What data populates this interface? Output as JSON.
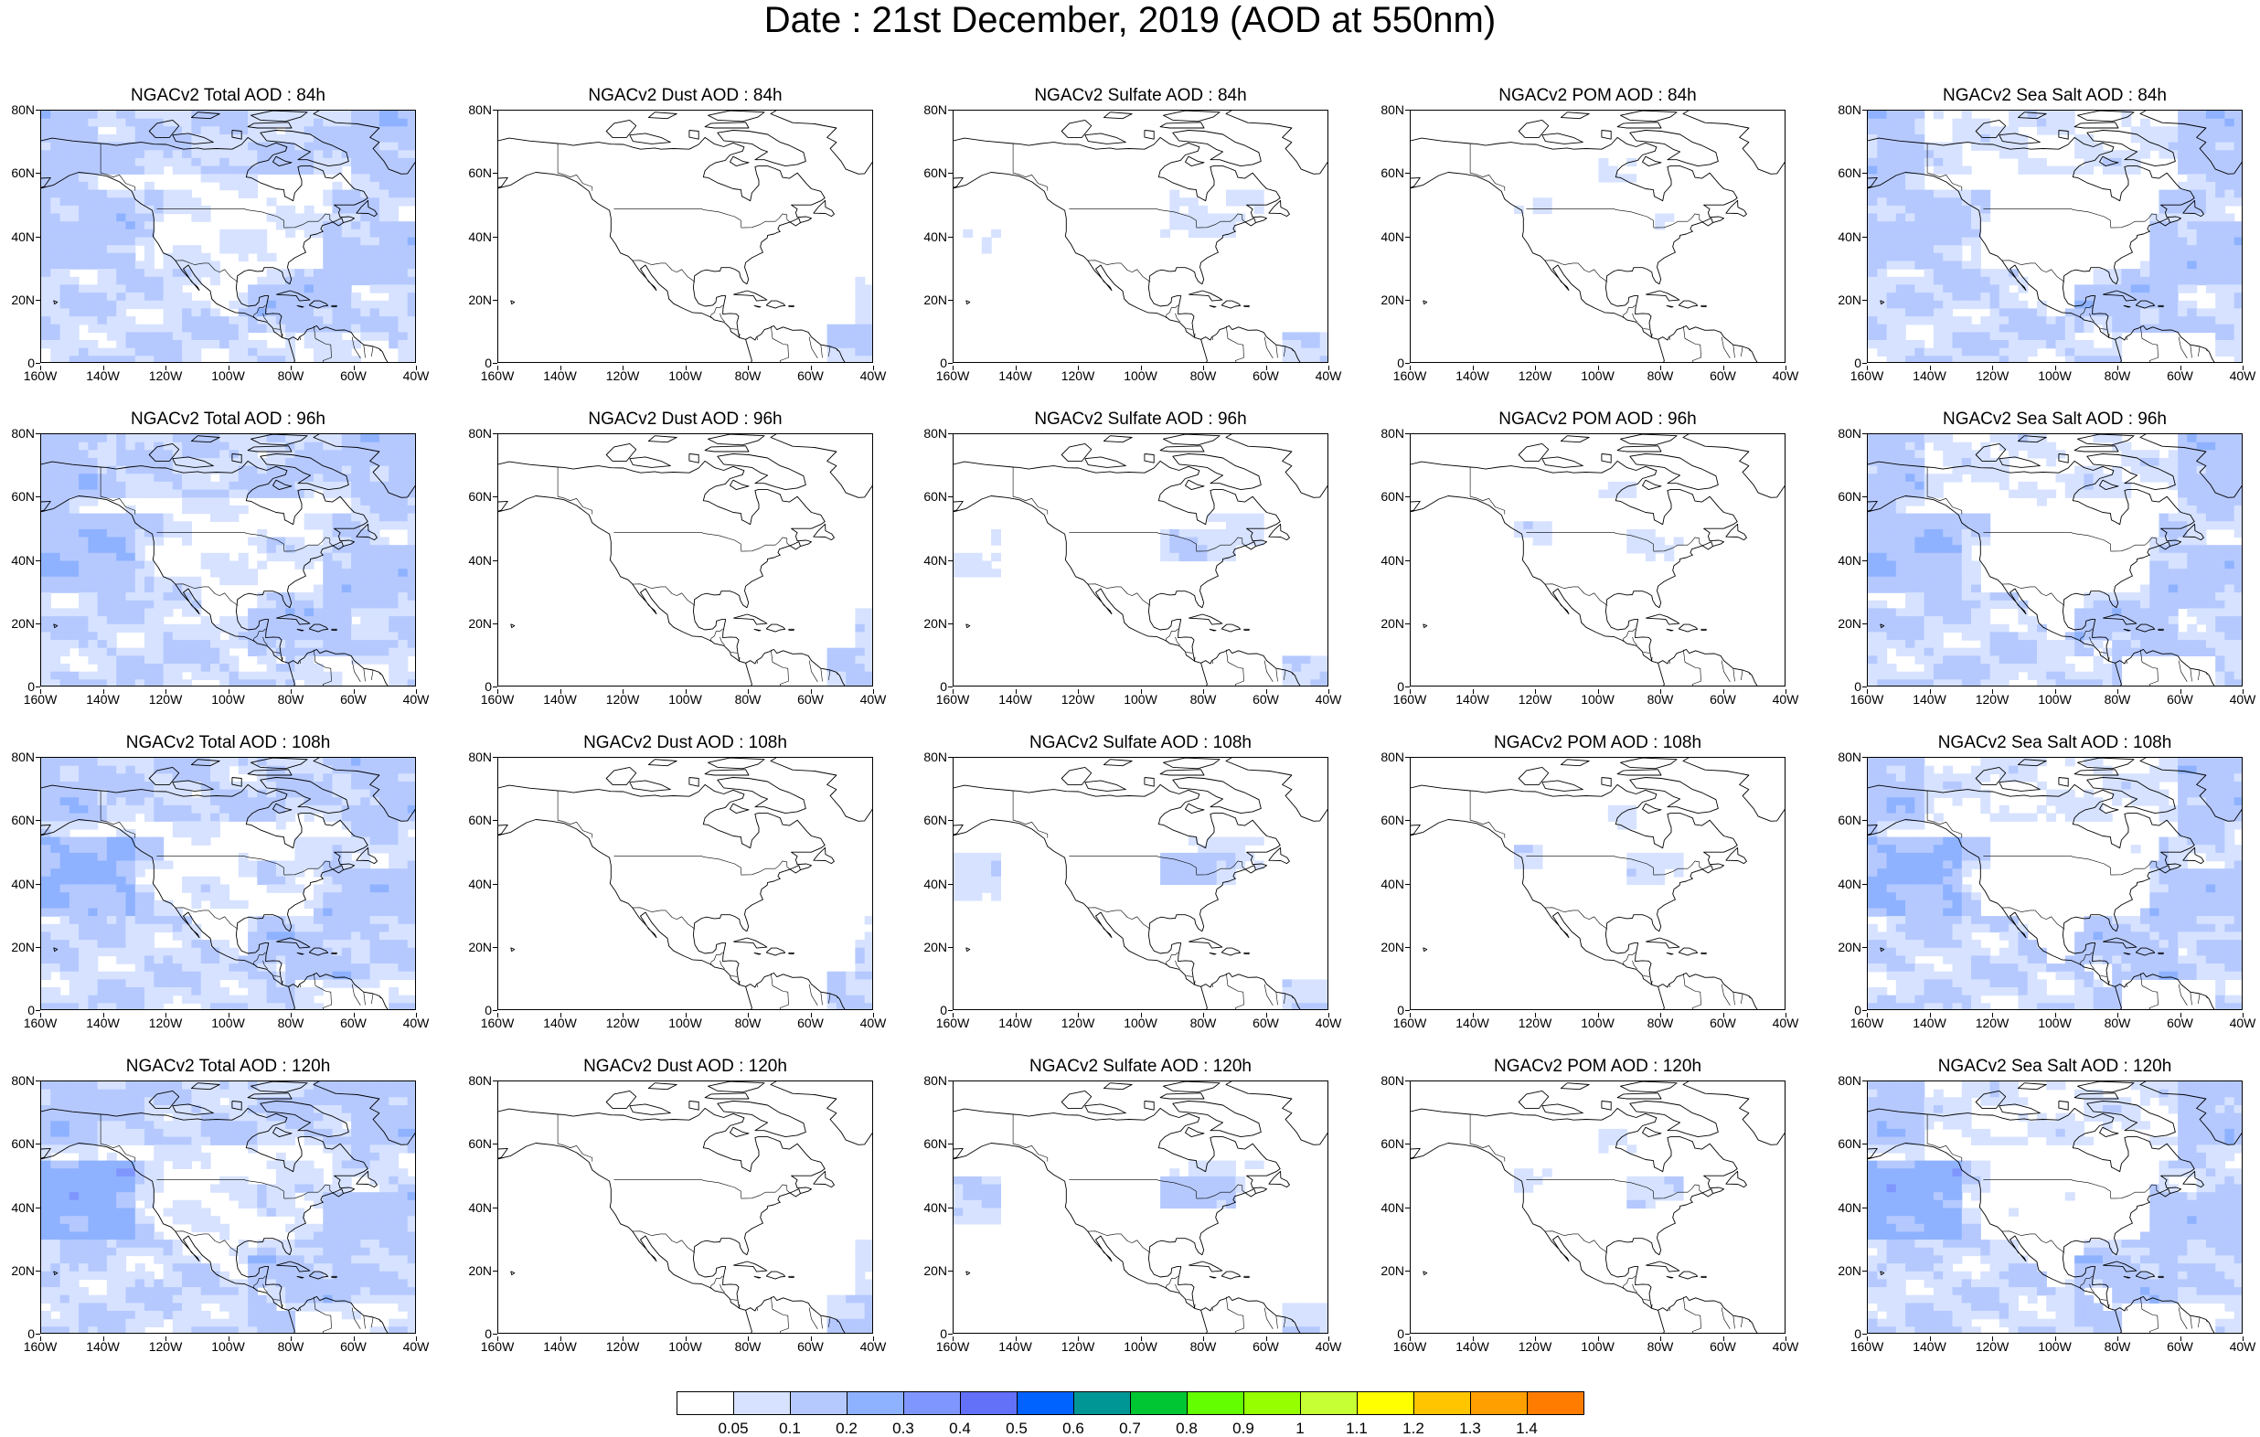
{
  "title": "Date : 21st December, 2019 (AOD at 550nm)",
  "y_ticks": [
    "80N",
    "60N",
    "40N",
    "20N",
    "0"
  ],
  "x_ticks": [
    "160W",
    "140W",
    "120W",
    "100W",
    "80W",
    "60W",
    "40W"
  ],
  "map_extent": {
    "lon": [
      -160,
      -40
    ],
    "lat": [
      0,
      80
    ]
  },
  "panels": [
    {
      "title": "NGACv2 Total AOD : 84h",
      "species": "total",
      "hour": 84
    },
    {
      "title": "NGACv2 Dust AOD : 84h",
      "species": "dust",
      "hour": 84
    },
    {
      "title": "NGACv2 Sulfate AOD : 84h",
      "species": "sulfate",
      "hour": 84
    },
    {
      "title": "NGACv2 POM AOD : 84h",
      "species": "pom",
      "hour": 84
    },
    {
      "title": "NGACv2 Sea Salt AOD : 84h",
      "species": "seasalt",
      "hour": 84
    },
    {
      "title": "NGACv2 Total AOD : 96h",
      "species": "total",
      "hour": 96
    },
    {
      "title": "NGACv2 Dust AOD : 96h",
      "species": "dust",
      "hour": 96
    },
    {
      "title": "NGACv2 Sulfate AOD : 96h",
      "species": "sulfate",
      "hour": 96
    },
    {
      "title": "NGACv2 POM AOD : 96h",
      "species": "pom",
      "hour": 96
    },
    {
      "title": "NGACv2 Sea Salt AOD : 96h",
      "species": "seasalt",
      "hour": 96
    },
    {
      "title": "NGACv2 Total AOD : 108h",
      "species": "total",
      "hour": 108
    },
    {
      "title": "NGACv2 Dust AOD : 108h",
      "species": "dust",
      "hour": 108
    },
    {
      "title": "NGACv2 Sulfate AOD : 108h",
      "species": "sulfate",
      "hour": 108
    },
    {
      "title": "NGACv2 POM AOD : 108h",
      "species": "pom",
      "hour": 108
    },
    {
      "title": "NGACv2 Sea Salt AOD : 108h",
      "species": "seasalt",
      "hour": 108
    },
    {
      "title": "NGACv2 Total AOD : 120h",
      "species": "total",
      "hour": 120
    },
    {
      "title": "NGACv2 Dust AOD : 120h",
      "species": "dust",
      "hour": 120
    },
    {
      "title": "NGACv2 Sulfate AOD : 120h",
      "species": "sulfate",
      "hour": 120
    },
    {
      "title": "NGACv2 POM AOD : 120h",
      "species": "pom",
      "hour": 120
    },
    {
      "title": "NGACv2 Sea Salt  AOD : 120h",
      "species": "seasalt",
      "hour": 120
    }
  ],
  "colorbar": {
    "labels": [
      "0.05",
      "0.1",
      "0.2",
      "0.3",
      "0.4",
      "0.5",
      "0.6",
      "0.7",
      "0.8",
      "0.9",
      "1",
      "1.1",
      "1.2",
      "1.3",
      "1.4"
    ],
    "colors": [
      "#ffffff",
      "#d6e2ff",
      "#b5c9ff",
      "#8eb2ff",
      "#7f96ff",
      "#6370f8",
      "#0063ff",
      "#009696",
      "#00c633",
      "#63ff00",
      "#96ff00",
      "#c6ff33",
      "#ffff00",
      "#ffc600",
      "#ffa000",
      "#ff7c00",
      "#ff1900"
    ]
  }
}
